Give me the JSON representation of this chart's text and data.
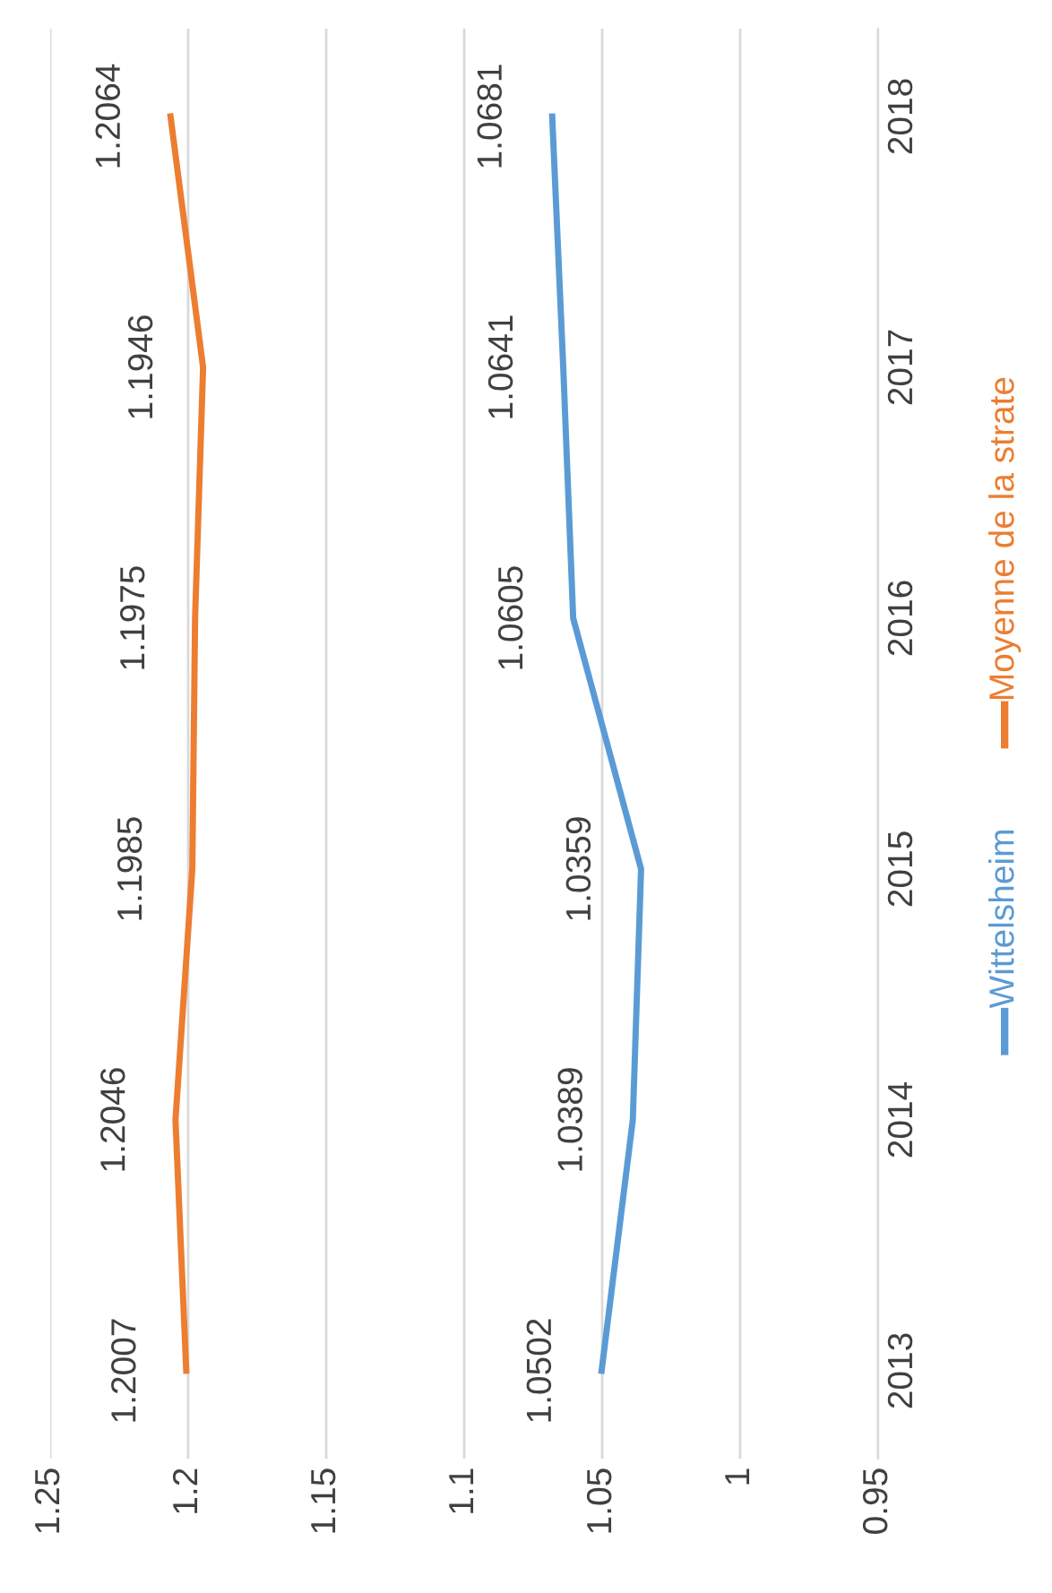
{
  "chart_data": {
    "type": "line",
    "orientation": "horizontal",
    "categories": [
      "2018",
      "2017",
      "2016",
      "2015",
      "2014",
      "2013"
    ],
    "series": [
      {
        "name": "Wittelsheim",
        "color": "#5b9bd5",
        "values": [
          1.0681,
          1.0641,
          1.0605,
          1.0359,
          1.0389,
          1.0502
        ]
      },
      {
        "name": "Moyenne de la strate",
        "color": "#ed7d31",
        "values": [
          1.2064,
          1.1946,
          1.1975,
          1.1985,
          1.2046,
          1.2007
        ]
      }
    ],
    "xlim": [
      1.25,
      0.95
    ],
    "xticks": [
      1.25,
      1.2,
      1.15,
      1.1,
      1.05,
      1,
      0.95
    ],
    "grid": "x",
    "data_labels": true,
    "legend": "right",
    "marker": "none",
    "line_style": "solid"
  }
}
